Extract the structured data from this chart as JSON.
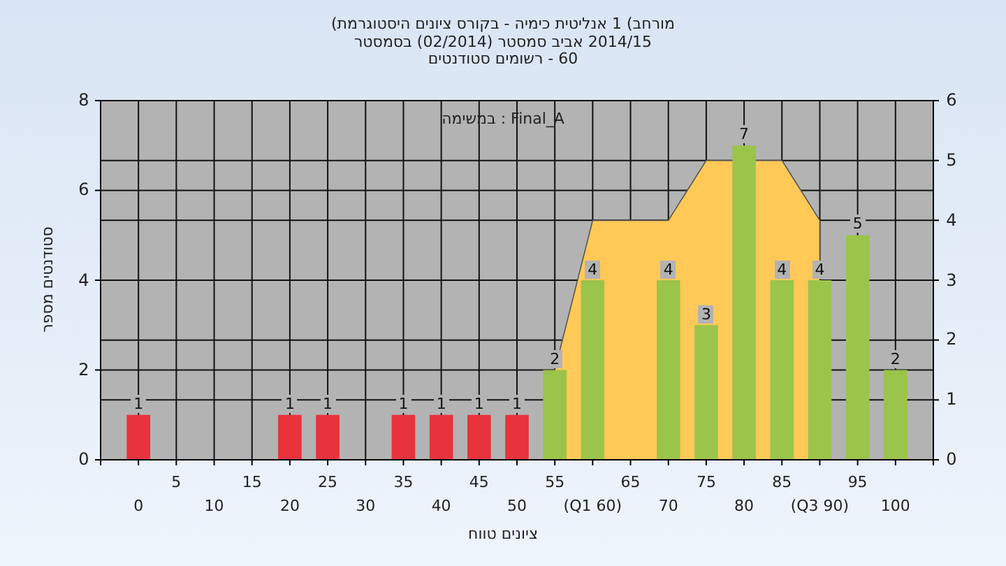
{
  "chart_data": {
    "type": "bar",
    "title": "(היסטוגרמת ציונים בקורס - כימיה אנליטית 1 (מורחב",
    "subtitle": "בסמסטר (02/2014) סמסטר אביב 2014/15\nסטודנטים רשומים - 60",
    "xlabel": "טווח ציונים",
    "ylabel": "מספר סטודנטים",
    "annotations": [
      "במשימה : Final_A"
    ],
    "categories": [
      "0",
      "5",
      "10",
      "15",
      "20",
      "25",
      "30",
      "35",
      "40",
      "45",
      "50",
      "55",
      "(Q1 60)",
      "65",
      "70",
      "75",
      "80",
      "85",
      "(Q3 90)",
      "95",
      "100"
    ],
    "series": [
      {
        "type": "area",
        "axis": "y2",
        "color": "#ffc957",
        "values": [
          null,
          null,
          null,
          null,
          null,
          null,
          null,
          null,
          null,
          null,
          null,
          1.5,
          4,
          4,
          4,
          5,
          null,
          5,
          4,
          null,
          null
        ]
      },
      {
        "colors": [
          "#e8323c",
          "#e8323c",
          "#e8323c",
          "#e8323c",
          "#e8323c",
          "#e8323c",
          "#e8323c",
          "#e8323c",
          "#e8323c",
          "#e8323c",
          "#e8323c",
          "#9bc44a",
          "#9bc44a",
          "#9bc44a",
          "#9bc44a",
          "#9bc44a",
          "#9bc44a",
          "#9bc44a",
          "#9bc44a",
          "#9bc44a",
          "#9bc44a"
        ],
        "values": [
          1,
          0,
          0,
          0,
          1,
          1,
          0,
          1,
          1,
          1,
          1,
          2,
          4,
          0,
          4,
          3,
          7,
          4,
          4,
          5,
          2
        ],
        "value_labels": [
          "1",
          null,
          null,
          null,
          "1",
          "1",
          null,
          "1",
          "1",
          "1",
          "1",
          "2",
          "4",
          null,
          "4",
          "3",
          "7",
          "4",
          "4",
          "5",
          "2"
        ]
      }
    ],
    "ylim": [
      0,
      8
    ],
    "yticks": [
      0,
      2,
      4,
      6,
      8
    ],
    "y2lim": [
      0,
      6
    ],
    "y2ticks": [
      0,
      1,
      2,
      3,
      4,
      5,
      6
    ],
    "grid": true
  }
}
